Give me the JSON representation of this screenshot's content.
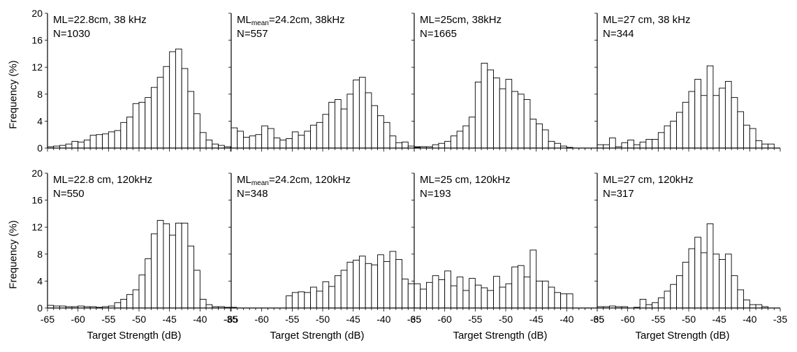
{
  "figure": {
    "ylabel": "Frequency (%)",
    "xlabel": "Target Strength (dB)"
  },
  "axes": {
    "x_ticks": [
      -65,
      -60,
      -55,
      -50,
      -45,
      -40,
      -35
    ],
    "y_ticks": [
      0,
      4,
      8,
      12,
      16,
      20
    ],
    "xlim": [
      -65,
      -35
    ],
    "ylim": [
      0,
      20
    ]
  },
  "chart_data": [
    {
      "type": "bar",
      "label_lines": [
        "ML=22.8cm, 38 kHz",
        "N=1030"
      ],
      "label_rich": [
        {
          "t": "ML=22.8cm, 38 kHz"
        }
      ],
      "x_start": -65,
      "bin_width": 1,
      "values": [
        0.2,
        0.3,
        0.4,
        0.6,
        1.0,
        0.9,
        1.2,
        1.9,
        2.0,
        2.1,
        2.4,
        2.6,
        3.8,
        4.6,
        6.6,
        6.8,
        7.5,
        9.0,
        10.5,
        12.1,
        14.3,
        14.7,
        11.8,
        8.4,
        5.1,
        2.3,
        1.2,
        0.6,
        0.4,
        0.2,
        0.1,
        0,
        0,
        0,
        0,
        0
      ],
      "xlim": [
        -65,
        -35
      ],
      "ylim": [
        0,
        20
      ]
    },
    {
      "type": "bar",
      "label_lines": [
        "ML",
        "N=557"
      ],
      "label_rich": [
        {
          "t": "ML"
        },
        {
          "t": "mean",
          "sub": true
        },
        {
          "t": "=24.2cm, 38kHz"
        }
      ],
      "x_start": -65,
      "bin_width": 1,
      "values": [
        3.0,
        2.5,
        1.6,
        1.8,
        2.0,
        3.3,
        2.9,
        1.5,
        1.2,
        1.4,
        2.4,
        1.9,
        2.5,
        3.4,
        3.8,
        5.0,
        6.8,
        7.2,
        5.8,
        8.0,
        10.1,
        10.5,
        8.2,
        6.3,
        4.8,
        3.8,
        1.8,
        0.8,
        0.9,
        0.3,
        0.2,
        0.2,
        0,
        0,
        0,
        0
      ],
      "xlim": [
        -65,
        -35
      ],
      "ylim": [
        0,
        20
      ]
    },
    {
      "type": "bar",
      "label_lines": [
        "ML=25cm, 38kHz",
        "N=1665"
      ],
      "label_rich": [
        {
          "t": "ML=25cm, 38kHz"
        }
      ],
      "x_start": -65,
      "bin_width": 1,
      "values": [
        0.1,
        0.2,
        0.2,
        0.5,
        0.7,
        1.0,
        1.8,
        2.5,
        3.3,
        4.6,
        9.8,
        12.6,
        11.6,
        10.4,
        8.8,
        10.2,
        8.4,
        8.0,
        7.2,
        4.3,
        3.6,
        2.7,
        1.0,
        0.7,
        0.3,
        0.1,
        0,
        0,
        0,
        0,
        0,
        0,
        0,
        0,
        0,
        0
      ],
      "xlim": [
        -65,
        -35
      ],
      "ylim": [
        0,
        20
      ]
    },
    {
      "type": "bar",
      "label_lines": [
        "ML=27 cm, 38 kHz",
        "N=344"
      ],
      "label_rich": [
        {
          "t": "ML=27 cm, 38 kHz"
        }
      ],
      "x_start": -65,
      "bin_width": 1,
      "values": [
        0.5,
        0.5,
        1.5,
        0.2,
        0.8,
        1.2,
        0.5,
        0.9,
        1.3,
        1.3,
        2.3,
        3.3,
        4.0,
        5.3,
        6.8,
        8.4,
        10.2,
        7.8,
        12.2,
        7.8,
        8.9,
        9.9,
        7.5,
        5.4,
        3.4,
        2.9,
        1.1,
        0.6,
        0.6,
        0,
        0,
        0,
        0,
        0,
        0,
        0
      ],
      "xlim": [
        -65,
        -35
      ],
      "ylim": [
        0,
        20
      ]
    },
    {
      "type": "bar",
      "label_lines": [
        "ML=22.8 cm, 120kHz",
        "N=550"
      ],
      "label_rich": [
        {
          "t": "ML=22.8 cm, 120kHz"
        }
      ],
      "x_start": -65,
      "bin_width": 1,
      "values": [
        0.4,
        0.3,
        0.3,
        0.2,
        0.2,
        0.3,
        0.2,
        0.2,
        0.1,
        0.2,
        0.3,
        0.8,
        1.3,
        2.0,
        2.7,
        4.9,
        7.3,
        11.0,
        13.0,
        12.5,
        10.8,
        12.6,
        12.6,
        9.2,
        5.6,
        1.3,
        0.5,
        0.2,
        0.2,
        0.1,
        0.1,
        0,
        0,
        0,
        0,
        0
      ],
      "xlim": [
        -65,
        -35
      ],
      "ylim": [
        0,
        20
      ]
    },
    {
      "type": "bar",
      "label_lines": [
        "ML",
        "N=348"
      ],
      "label_rich": [
        {
          "t": "ML"
        },
        {
          "t": "mean",
          "sub": true
        },
        {
          "t": "=24.2cm, 120kHz"
        }
      ],
      "x_start": -65,
      "bin_width": 1,
      "values": [
        0,
        0,
        0,
        0,
        0,
        0,
        0,
        0,
        0,
        1.8,
        2.3,
        2.4,
        2.3,
        3.1,
        2.5,
        3.9,
        3.2,
        4.8,
        5.6,
        6.8,
        7.1,
        7.7,
        6.6,
        6.4,
        7.9,
        6.9,
        8.4,
        7.2,
        4.3,
        3.6,
        1.8,
        1.4,
        0.6,
        0.3,
        0.1,
        0.3
      ],
      "xlim": [
        -65,
        -35
      ],
      "ylim": [
        0,
        20
      ]
    },
    {
      "type": "bar",
      "label_lines": [
        "ML=25 cm, 120kHz",
        "N=193"
      ],
      "label_rich": [
        {
          "t": "ML=25 cm, 120kHz"
        }
      ],
      "x_start": -65,
      "bin_width": 1,
      "values": [
        3.6,
        2.8,
        3.8,
        4.8,
        4.2,
        5.5,
        3.3,
        4.6,
        2.6,
        4.4,
        3.4,
        3.0,
        2.6,
        4.7,
        3.1,
        3.6,
        6.1,
        6.3,
        4.6,
        8.6,
        4.0,
        4.0,
        3.1,
        2.3,
        2.1,
        2.1,
        0,
        0,
        0,
        0,
        0,
        0,
        0,
        0,
        0,
        0
      ],
      "xlim": [
        -65,
        -35
      ],
      "ylim": [
        0,
        20
      ]
    },
    {
      "type": "bar",
      "label_lines": [
        "ML=27 cm, 120kHz",
        "N=317"
      ],
      "label_rich": [
        {
          "t": "ML=27 cm, 120kHz"
        }
      ],
      "x_start": -65,
      "bin_width": 1,
      "values": [
        0.2,
        0.2,
        0.3,
        0.2,
        0.2,
        0,
        0.1,
        1.3,
        0.5,
        0.8,
        1.5,
        2.5,
        3.5,
        4.8,
        6.8,
        8.8,
        10.5,
        8.2,
        12.5,
        8.0,
        7.2,
        8.0,
        4.8,
        2.7,
        1.2,
        0.5,
        0.5,
        0.2,
        0,
        0,
        0,
        0,
        0,
        0,
        0,
        0
      ],
      "xlim": [
        -65,
        -35
      ],
      "ylim": [
        0,
        20
      ]
    }
  ]
}
